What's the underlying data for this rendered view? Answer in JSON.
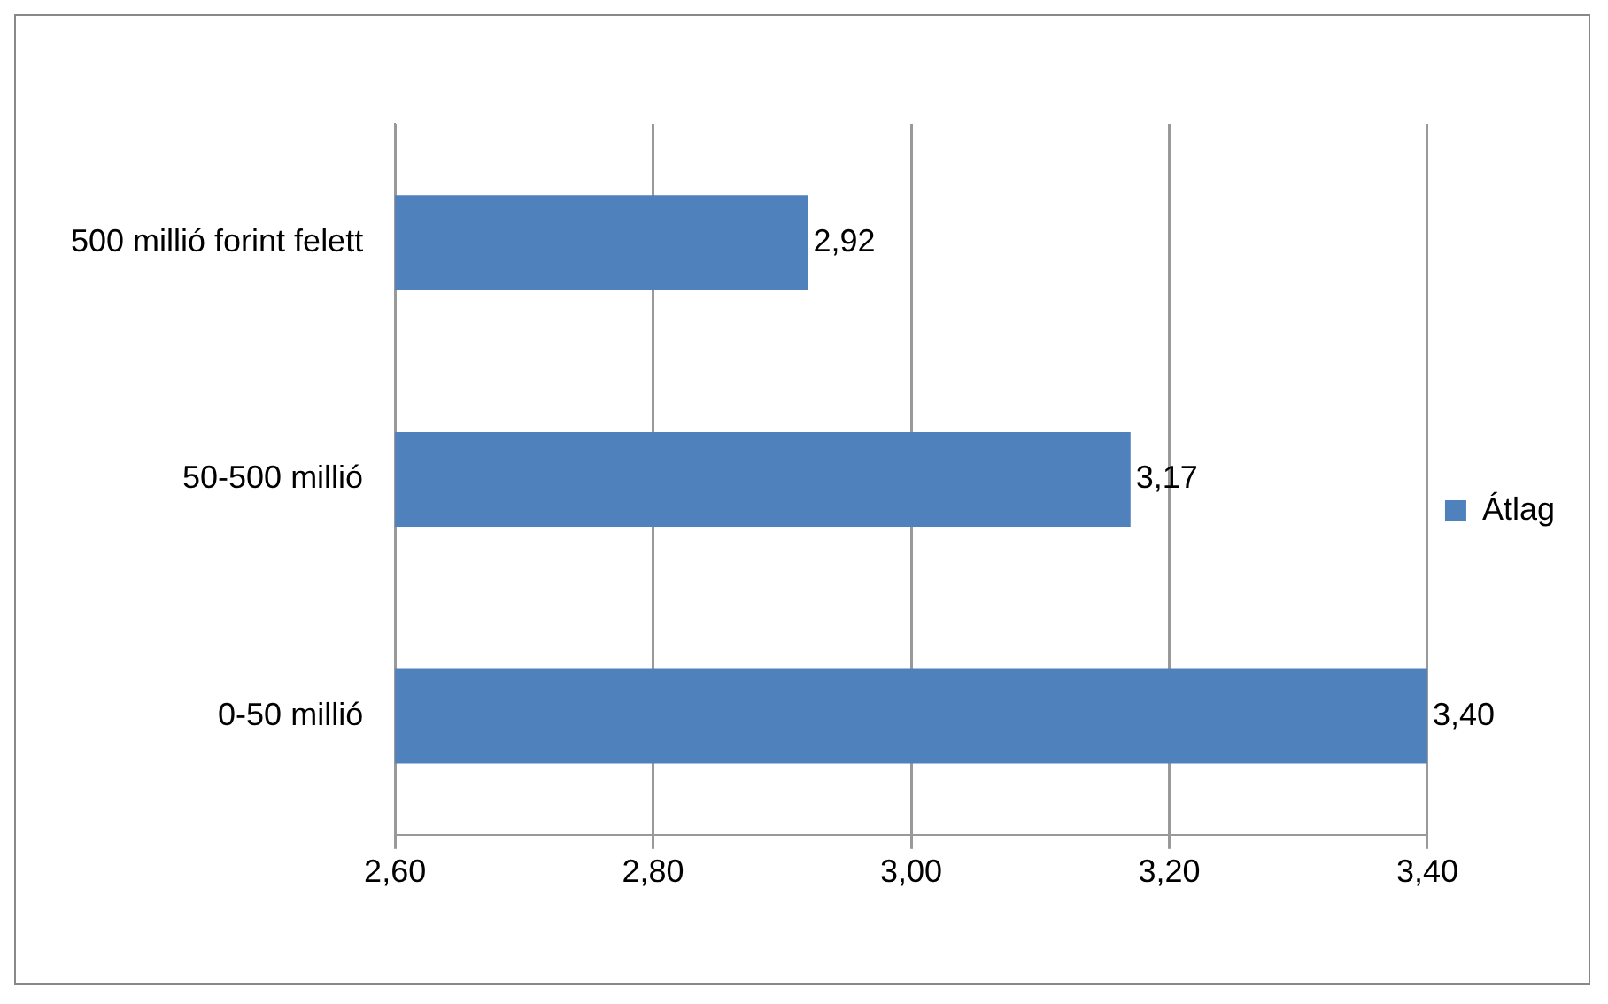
{
  "chart_data": {
    "type": "bar",
    "orientation": "horizontal",
    "categories": [
      "500 millió forint felett",
      "50-500 millió",
      "0-50 millió"
    ],
    "series": [
      {
        "name": "Átlag",
        "color": "#4f81bd",
        "values": [
          2.92,
          3.17,
          3.4
        ],
        "value_labels": [
          "2,92",
          "3,17",
          "3,40"
        ]
      }
    ],
    "xlim": [
      2.6,
      3.4
    ],
    "xticks": [
      {
        "value": 2.6,
        "label": "2,60"
      },
      {
        "value": 2.8,
        "label": "2,80"
      },
      {
        "value": 3.0,
        "label": "3,00"
      },
      {
        "value": 3.2,
        "label": "3,20"
      },
      {
        "value": 3.4,
        "label": "3,40"
      }
    ],
    "grid": "x",
    "legend": "right"
  }
}
